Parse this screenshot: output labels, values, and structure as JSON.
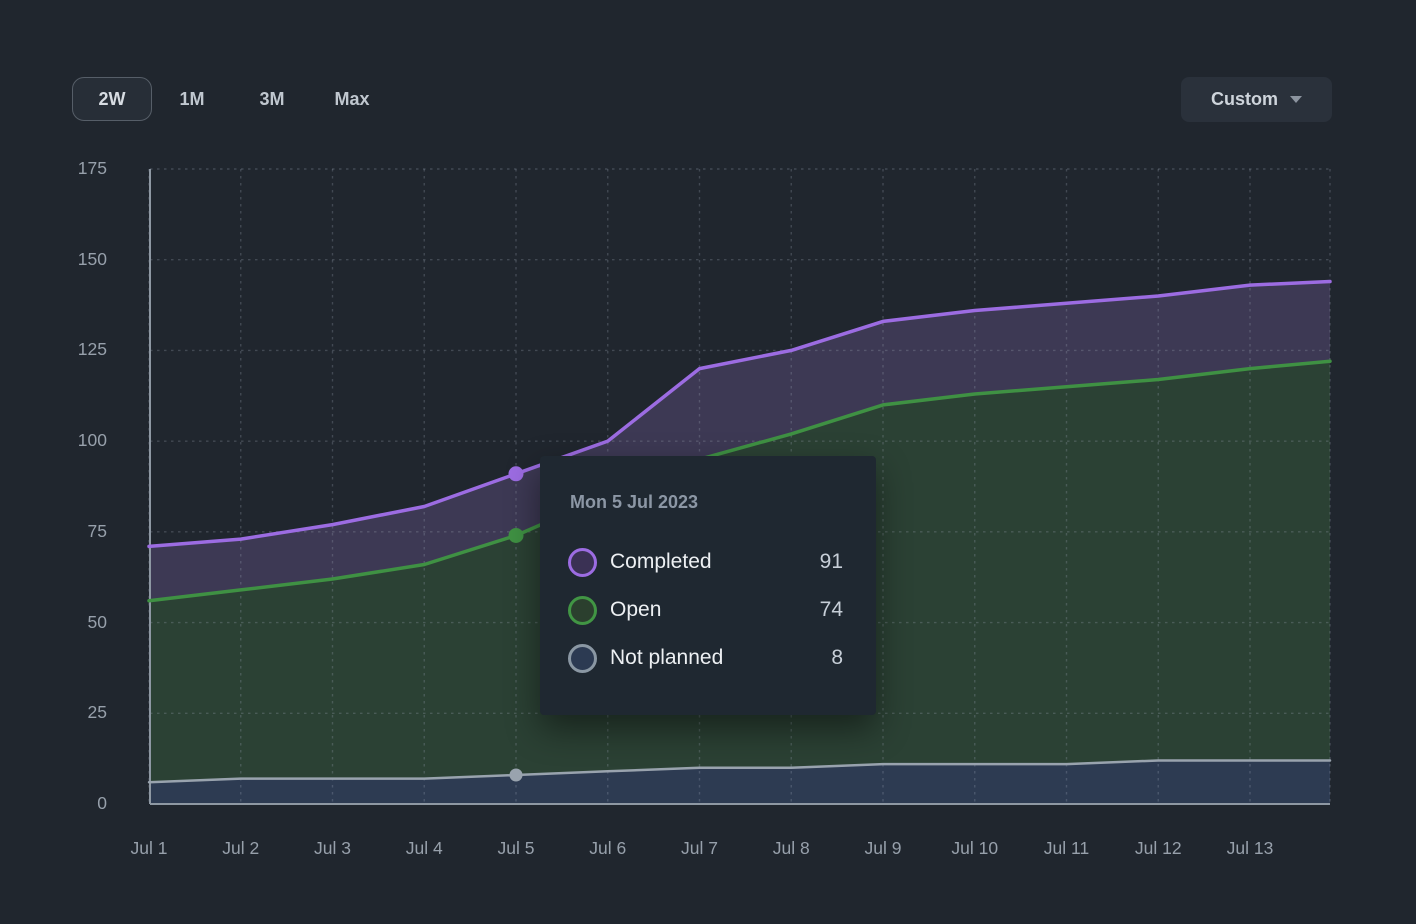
{
  "toolbar": {
    "ranges": [
      {
        "label": "2W",
        "selected": true
      },
      {
        "label": "1M",
        "selected": false
      },
      {
        "label": "3M",
        "selected": false
      },
      {
        "label": "Max",
        "selected": false
      }
    ],
    "custom_label": "Custom"
  },
  "chart_data": {
    "type": "area",
    "stacked": false,
    "title": "",
    "xlabel": "",
    "ylabel": "",
    "x_labels": [
      "Jul 1",
      "Jul 2",
      "Jul 3",
      "Jul 4",
      "Jul 5",
      "Jul 6",
      "Jul 7",
      "Jul 8",
      "Jul 9",
      "Jul 10",
      "Jul 11",
      "Jul 12",
      "Jul 13"
    ],
    "ylim": [
      0,
      175
    ],
    "y_ticks": [
      0,
      25,
      50,
      75,
      100,
      125,
      150,
      175
    ],
    "grid": "dashed",
    "series": [
      {
        "name": "Completed",
        "line_color": "#9c6ce2",
        "fill_color": "#3d3954",
        "values": [
          71,
          73,
          77,
          82,
          91,
          100,
          120,
          125,
          133,
          136,
          138,
          140,
          143
        ],
        "edge_value": 144
      },
      {
        "name": "Open",
        "line_color": "#3f9143",
        "fill_color": "#2b4134",
        "values": [
          56,
          59,
          62,
          66,
          74,
          85,
          95,
          102,
          110,
          113,
          115,
          117,
          120
        ],
        "edge_value": 122
      },
      {
        "name": "Not planned",
        "line_color": "#99a3ae",
        "fill_color": "#2d3b52",
        "values": [
          6,
          7,
          7,
          7,
          8,
          9,
          10,
          10,
          11,
          11,
          11,
          12,
          12
        ],
        "edge_value": 12
      }
    ],
    "highlight_index": 4,
    "axis_color": "#8e98a3",
    "grid_color": "rgba(154,166,180,0.28)",
    "tick_label_color": "#97a0ab"
  },
  "tooltip": {
    "title": "Mon 5 Jul 2023",
    "rows": [
      {
        "label": "Completed",
        "value": "91",
        "ring": "#9c6ce2",
        "fill": "#3a3154"
      },
      {
        "label": "Open",
        "value": "74",
        "ring": "#419544",
        "fill": "#2b3f2e"
      },
      {
        "label": "Not planned",
        "value": "8",
        "ring": "#8a97a3",
        "fill": "#2c3a52"
      }
    ]
  }
}
